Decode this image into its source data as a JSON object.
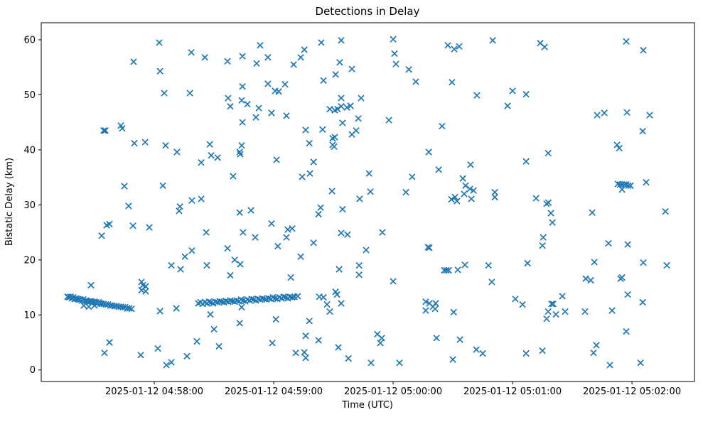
{
  "figure": {
    "title": "Detections in Delay",
    "xlabel": "Time (UTC)",
    "ylabel": "Bistatic Delay (km)"
  },
  "chart_data": {
    "type": "scatter",
    "title": "Detections in Delay",
    "xlabel": "Time (UTC)",
    "ylabel": "Bistatic Delay (km)",
    "marker": "x",
    "marker_color": "#1f77b4",
    "axes_color": "#000000",
    "background": "#ffffff",
    "grid": false,
    "legend": "none",
    "x_unit": "seconds since 2025-01-12 04:57:00 UTC",
    "xlim": [
      3.2,
      331.4
    ],
    "ylim": [
      -2.1,
      63.1
    ],
    "x_ticks": [
      {
        "t": 60,
        "label": "2025-01-12 04:58:00"
      },
      {
        "t": 120,
        "label": "2025-01-12 04:59:00"
      },
      {
        "t": 180,
        "label": "2025-01-12 05:00:00"
      },
      {
        "t": 240,
        "label": "2025-01-12 05:01:00"
      },
      {
        "t": 300,
        "label": "2025-01-12 05:02:00"
      }
    ],
    "y_ticks": [
      {
        "v": 0,
        "label": "0"
      },
      {
        "v": 10,
        "label": "10"
      },
      {
        "v": 20,
        "label": "20"
      },
      {
        "v": 30,
        "label": "30"
      },
      {
        "v": 40,
        "label": "40"
      },
      {
        "v": 50,
        "label": "50"
      },
      {
        "v": 60,
        "label": "60"
      }
    ],
    "points": [
      [
        62.5,
        59.5
      ],
      [
        78.6,
        57.7
      ],
      [
        85.4,
        56.8
      ],
      [
        49.6,
        56.0
      ],
      [
        96.8,
        56.1
      ],
      [
        104.3,
        57.0
      ],
      [
        113.2,
        59.0
      ],
      [
        111.4,
        55.7
      ],
      [
        62.9,
        54.3
      ],
      [
        65.0,
        50.3
      ],
      [
        77.9,
        50.3
      ],
      [
        104.3,
        51.5
      ],
      [
        97.1,
        49.4
      ],
      [
        103.9,
        49.0
      ],
      [
        106.8,
        48.3
      ],
      [
        98.2,
        47.9
      ],
      [
        112.5,
        47.6
      ],
      [
        111.1,
        45.9
      ],
      [
        104.3,
        45.0
      ],
      [
        43.2,
        44.4
      ],
      [
        43.9,
        43.9
      ],
      [
        34.6,
        43.5
      ],
      [
        35.4,
        43.5
      ],
      [
        50.0,
        41.2
      ],
      [
        55.4,
        41.4
      ],
      [
        65.7,
        40.8
      ],
      [
        71.4,
        39.6
      ],
      [
        87.9,
        41.0
      ],
      [
        88.6,
        39.0
      ],
      [
        91.8,
        38.6
      ],
      [
        83.6,
        37.7
      ],
      [
        103.9,
        40.8
      ],
      [
        102.9,
        39.6
      ],
      [
        103.2,
        39.2
      ],
      [
        99.6,
        35.2
      ],
      [
        45.0,
        33.4
      ],
      [
        64.3,
        33.5
      ],
      [
        78.9,
        30.8
      ],
      [
        83.6,
        31.1
      ],
      [
        117.1,
        56.8
      ],
      [
        143.9,
        59.5
      ],
      [
        153.9,
        59.9
      ],
      [
        135.4,
        58.2
      ],
      [
        133.6,
        56.8
      ],
      [
        130.0,
        55.5
      ],
      [
        153.2,
        55.9
      ],
      [
        159.3,
        54.7
      ],
      [
        151.1,
        53.7
      ],
      [
        145.0,
        52.6
      ],
      [
        117.1,
        52.0
      ],
      [
        120.7,
        50.7
      ],
      [
        122.5,
        50.6
      ],
      [
        125.7,
        51.9
      ],
      [
        180.0,
        60.1
      ],
      [
        180.7,
        57.5
      ],
      [
        181.4,
        55.6
      ],
      [
        187.9,
        54.6
      ],
      [
        191.4,
        52.4
      ],
      [
        207.5,
        59.0
      ],
      [
        210.7,
        58.3
      ],
      [
        213.2,
        58.8
      ],
      [
        209.6,
        52.3
      ],
      [
        222.1,
        49.9
      ],
      [
        118.9,
        46.7
      ],
      [
        126.4,
        46.2
      ],
      [
        153.9,
        49.4
      ],
      [
        163.9,
        49.4
      ],
      [
        148.2,
        47.4
      ],
      [
        150.7,
        47.2
      ],
      [
        152.1,
        47.4
      ],
      [
        153.9,
        47.9
      ],
      [
        156.8,
        47.7
      ],
      [
        158.6,
        48.0
      ],
      [
        154.6,
        44.9
      ],
      [
        162.5,
        45.7
      ],
      [
        177.9,
        45.4
      ],
      [
        204.6,
        44.3
      ],
      [
        136.1,
        43.6
      ],
      [
        144.6,
        43.7
      ],
      [
        159.3,
        42.8
      ],
      [
        161.4,
        43.5
      ],
      [
        149.6,
        42.1
      ],
      [
        150.7,
        42.3
      ],
      [
        149.6,
        40.9
      ],
      [
        150.4,
        40.6
      ],
      [
        137.9,
        41.2
      ],
      [
        197.9,
        39.6
      ],
      [
        121.4,
        38.2
      ],
      [
        140.0,
        37.8
      ],
      [
        134.3,
        35.1
      ],
      [
        138.2,
        35.7
      ],
      [
        167.9,
        35.7
      ],
      [
        202.9,
        36.4
      ],
      [
        218.9,
        37.3
      ],
      [
        189.6,
        35.1
      ],
      [
        149.3,
        32.5
      ],
      [
        168.6,
        32.4
      ],
      [
        163.2,
        31.1
      ],
      [
        186.4,
        32.3
      ],
      [
        230.0,
        59.9
      ],
      [
        253.9,
        59.4
      ],
      [
        256.1,
        58.7
      ],
      [
        297.1,
        59.7
      ],
      [
        305.7,
        58.1
      ],
      [
        240.0,
        50.7
      ],
      [
        246.8,
        50.1
      ],
      [
        237.5,
        48.0
      ],
      [
        282.5,
        46.3
      ],
      [
        286.1,
        46.7
      ],
      [
        297.5,
        46.8
      ],
      [
        308.9,
        46.3
      ],
      [
        305.4,
        43.4
      ],
      [
        292.5,
        40.9
      ],
      [
        293.6,
        40.3
      ],
      [
        257.9,
        39.4
      ],
      [
        246.8,
        37.9
      ],
      [
        307.1,
        34.1
      ],
      [
        292.9,
        33.8
      ],
      [
        294.0,
        33.7
      ],
      [
        295.0,
        33.7
      ],
      [
        296.1,
        33.7
      ],
      [
        297.1,
        33.7
      ],
      [
        298.2,
        33.5
      ],
      [
        299.3,
        33.5
      ],
      [
        295.0,
        32.8
      ],
      [
        231.1,
        32.3
      ],
      [
        231.1,
        31.4
      ],
      [
        251.8,
        31.2
      ],
      [
        258.0,
        30.4
      ],
      [
        47.1,
        29.8
      ],
      [
        72.5,
        28.9
      ],
      [
        72.9,
        29.7
      ],
      [
        102.9,
        28.6
      ],
      [
        108.6,
        29.0
      ],
      [
        36.1,
        26.3
      ],
      [
        37.5,
        26.5
      ],
      [
        33.6,
        24.4
      ],
      [
        49.3,
        26.2
      ],
      [
        57.5,
        25.9
      ],
      [
        86.1,
        25.0
      ],
      [
        104.6,
        25.0
      ],
      [
        110.7,
        24.1
      ],
      [
        96.8,
        22.1
      ],
      [
        78.9,
        21.7
      ],
      [
        75.4,
        20.6
      ],
      [
        68.6,
        19.0
      ],
      [
        73.2,
        18.3
      ],
      [
        86.4,
        19.0
      ],
      [
        100.4,
        20.0
      ],
      [
        103.2,
        19.2
      ],
      [
        98.2,
        17.2
      ],
      [
        28.2,
        15.4
      ],
      [
        53.6,
        16.0
      ],
      [
        55.7,
        15.2
      ],
      [
        53.6,
        14.5
      ],
      [
        55.7,
        14.3
      ],
      [
        54.3,
        15.4
      ],
      [
        62.9,
        10.7
      ],
      [
        71.1,
        11.2
      ],
      [
        88.2,
        10.1
      ],
      [
        102.9,
        8.5
      ],
      [
        90.0,
        7.4
      ],
      [
        37.5,
        5.0
      ],
      [
        35.0,
        3.1
      ],
      [
        61.8,
        3.9
      ],
      [
        68.6,
        1.4
      ],
      [
        66.1,
        0.9
      ],
      [
        76.4,
        2.5
      ],
      [
        81.4,
        5.2
      ],
      [
        92.5,
        4.3
      ],
      [
        53.2,
        2.7
      ],
      [
        143.6,
        29.5
      ],
      [
        142.5,
        28.3
      ],
      [
        154.6,
        29.2
      ],
      [
        118.9,
        26.6
      ],
      [
        127.1,
        25.5
      ],
      [
        129.3,
        25.7
      ],
      [
        126.4,
        24.1
      ],
      [
        122.1,
        22.5
      ],
      [
        140.0,
        23.1
      ],
      [
        133.6,
        20.6
      ],
      [
        153.9,
        24.9
      ],
      [
        157.1,
        24.6
      ],
      [
        174.6,
        25.0
      ],
      [
        166.4,
        21.8
      ],
      [
        162.9,
        19.0
      ],
      [
        162.9,
        17.3
      ],
      [
        152.9,
        18.3
      ],
      [
        128.6,
        16.8
      ],
      [
        180.0,
        16.1
      ],
      [
        197.5,
        22.3
      ],
      [
        198.2,
        22.2
      ],
      [
        205.7,
        18.1
      ],
      [
        206.8,
        18.1
      ],
      [
        207.9,
        18.1
      ],
      [
        212.5,
        18.2
      ],
      [
        216.1,
        19.1
      ],
      [
        196.4,
        12.4
      ],
      [
        198.2,
        12.1
      ],
      [
        200.0,
        11.5
      ],
      [
        201.4,
        12.1
      ],
      [
        196.4,
        10.8
      ],
      [
        201.1,
        11.1
      ],
      [
        210.4,
        10.5
      ],
      [
        142.9,
        13.3
      ],
      [
        145.0,
        13.2
      ],
      [
        146.8,
        11.9
      ],
      [
        148.2,
        10.6
      ],
      [
        151.1,
        14.2
      ],
      [
        151.8,
        13.7
      ],
      [
        153.9,
        12.1
      ],
      [
        121.1,
        9.2
      ],
      [
        137.9,
        8.9
      ],
      [
        119.3,
        4.9
      ],
      [
        136.1,
        6.2
      ],
      [
        142.5,
        5.4
      ],
      [
        131.1,
        3.1
      ],
      [
        135.4,
        3.2
      ],
      [
        136.1,
        2.2
      ],
      [
        152.5,
        4.1
      ],
      [
        157.5,
        2.1
      ],
      [
        168.9,
        1.3
      ],
      [
        172.1,
        6.5
      ],
      [
        174.3,
        5.8
      ],
      [
        173.6,
        4.9
      ],
      [
        183.2,
        1.3
      ],
      [
        201.8,
        5.8
      ],
      [
        213.6,
        5.5
      ],
      [
        210.0,
        1.9
      ],
      [
        221.8,
        3.7
      ],
      [
        257.1,
        30.2
      ],
      [
        259.3,
        28.5
      ],
      [
        260.0,
        26.8
      ],
      [
        280.0,
        28.6
      ],
      [
        316.8,
        28.8
      ],
      [
        255.4,
        24.1
      ],
      [
        255.0,
        22.6
      ],
      [
        288.2,
        23.0
      ],
      [
        297.9,
        22.8
      ],
      [
        227.9,
        19.0
      ],
      [
        247.5,
        19.4
      ],
      [
        281.1,
        19.6
      ],
      [
        305.7,
        19.5
      ],
      [
        317.5,
        19.0
      ],
      [
        229.6,
        16.0
      ],
      [
        276.8,
        16.6
      ],
      [
        279.3,
        16.3
      ],
      [
        294.3,
        16.6
      ],
      [
        295.0,
        16.8
      ],
      [
        297.9,
        13.7
      ],
      [
        305.4,
        12.3
      ],
      [
        241.4,
        12.9
      ],
      [
        245.0,
        11.9
      ],
      [
        265.0,
        13.4
      ],
      [
        259.6,
        12.0
      ],
      [
        260.4,
        12.0
      ],
      [
        257.9,
        10.6
      ],
      [
        257.1,
        9.3
      ],
      [
        261.8,
        10.1
      ],
      [
        266.4,
        10.6
      ],
      [
        276.4,
        10.6
      ],
      [
        290.0,
        10.8
      ],
      [
        297.1,
        7.0
      ],
      [
        225.0,
        3.0
      ],
      [
        246.8,
        3.0
      ],
      [
        255.0,
        3.5
      ],
      [
        282.1,
        4.5
      ],
      [
        280.7,
        3.1
      ],
      [
        288.9,
        0.9
      ],
      [
        304.3,
        1.3
      ],
      [
        215.0,
        34.8
      ],
      [
        216.4,
        33.5
      ],
      [
        218.6,
        32.9
      ],
      [
        220.4,
        32.6
      ],
      [
        215.7,
        32.0
      ],
      [
        211.1,
        31.4
      ],
      [
        209.3,
        31.0
      ],
      [
        219.3,
        31.1
      ],
      [
        212.1,
        30.7
      ],
      [
        16.4,
        13.3
      ],
      [
        17.1,
        13.2
      ],
      [
        17.9,
        13.3
      ],
      [
        18.6,
        13.0
      ],
      [
        19.3,
        13.2
      ],
      [
        20.0,
        12.9
      ],
      [
        20.7,
        13.0
      ],
      [
        21.4,
        12.9
      ],
      [
        22.1,
        12.8
      ],
      [
        22.9,
        12.8
      ],
      [
        23.6,
        12.6
      ],
      [
        24.3,
        12.8
      ],
      [
        25.0,
        12.5
      ],
      [
        25.7,
        12.6
      ],
      [
        26.4,
        12.5
      ],
      [
        27.1,
        12.4
      ],
      [
        27.9,
        12.5
      ],
      [
        28.6,
        12.4
      ],
      [
        29.3,
        12.3
      ],
      [
        30.0,
        12.4
      ],
      [
        30.7,
        12.3
      ],
      [
        31.4,
        12.1
      ],
      [
        32.1,
        12.3
      ],
      [
        32.9,
        12.1
      ],
      [
        33.6,
        12.0
      ],
      [
        34.6,
        12.0
      ],
      [
        35.7,
        11.9
      ],
      [
        36.8,
        11.9
      ],
      [
        37.9,
        11.7
      ],
      [
        38.9,
        11.7
      ],
      [
        40.0,
        11.6
      ],
      [
        41.1,
        11.6
      ],
      [
        42.1,
        11.5
      ],
      [
        43.2,
        11.5
      ],
      [
        44.3,
        11.4
      ],
      [
        45.4,
        11.4
      ],
      [
        46.4,
        11.2
      ],
      [
        47.5,
        11.2
      ],
      [
        48.6,
        11.1
      ],
      [
        24.6,
        11.7
      ],
      [
        27.1,
        11.5
      ],
      [
        30.0,
        11.7
      ],
      [
        82.1,
        12.1
      ],
      [
        83.2,
        12.3
      ],
      [
        84.3,
        12.0
      ],
      [
        85.4,
        12.3
      ],
      [
        86.4,
        12.1
      ],
      [
        87.5,
        12.4
      ],
      [
        88.6,
        12.3
      ],
      [
        89.6,
        12.1
      ],
      [
        90.7,
        12.4
      ],
      [
        91.8,
        12.3
      ],
      [
        92.9,
        12.5
      ],
      [
        93.9,
        12.4
      ],
      [
        95.0,
        12.3
      ],
      [
        96.1,
        12.5
      ],
      [
        97.1,
        12.4
      ],
      [
        98.2,
        12.6
      ],
      [
        99.3,
        12.5
      ],
      [
        100.4,
        12.4
      ],
      [
        101.4,
        12.6
      ],
      [
        102.5,
        12.5
      ],
      [
        103.6,
        12.8
      ],
      [
        103.9,
        11.4
      ],
      [
        104.6,
        12.6
      ],
      [
        105.7,
        12.5
      ],
      [
        106.8,
        12.8
      ],
      [
        107.9,
        12.6
      ],
      [
        108.9,
        12.9
      ],
      [
        110.0,
        12.8
      ],
      [
        111.1,
        12.6
      ],
      [
        112.1,
        12.9
      ],
      [
        113.2,
        12.8
      ],
      [
        114.3,
        13.0
      ],
      [
        115.4,
        12.9
      ],
      [
        116.4,
        12.8
      ],
      [
        117.5,
        13.0
      ],
      [
        118.6,
        12.9
      ],
      [
        119.6,
        13.2
      ],
      [
        120.7,
        13.0
      ],
      [
        121.8,
        12.9
      ],
      [
        122.9,
        13.2
      ],
      [
        123.9,
        13.0
      ],
      [
        125.0,
        13.3
      ],
      [
        126.1,
        13.2
      ],
      [
        127.1,
        13.0
      ],
      [
        128.2,
        13.3
      ],
      [
        129.3,
        13.2
      ],
      [
        130.4,
        13.3
      ],
      [
        132.1,
        13.4
      ]
    ]
  }
}
